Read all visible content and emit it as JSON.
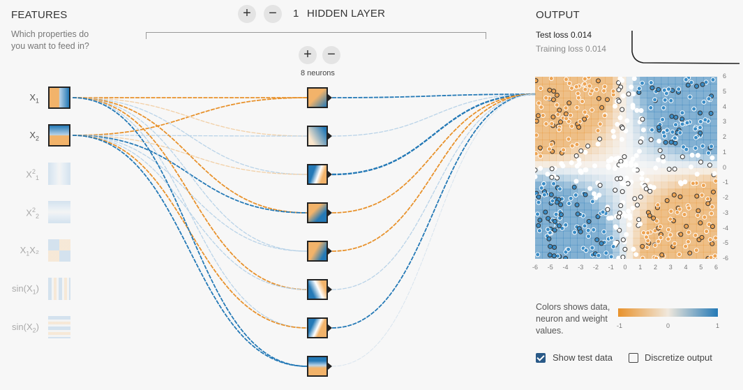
{
  "features": {
    "title": "FEATURES",
    "question": "Which properties do you want to feed in?",
    "items": [
      {
        "base": "X",
        "sub": "1",
        "sup": "",
        "tail": "",
        "active": true,
        "pattern": "x1"
      },
      {
        "base": "X",
        "sub": "2",
        "sup": "",
        "tail": "",
        "active": true,
        "pattern": "x2"
      },
      {
        "base": "X",
        "sub": "1",
        "sup": "2",
        "tail": "",
        "active": false,
        "pattern": "x1sq"
      },
      {
        "base": "X",
        "sub": "2",
        "sup": "2",
        "tail": "",
        "active": false,
        "pattern": "x2sq"
      },
      {
        "base": "X",
        "sub": "1",
        "sup": "",
        "tail": "X₂",
        "active": false,
        "pattern": "x1x2"
      },
      {
        "base": "sin(X",
        "sub": "1",
        "sup": "",
        "tail": ")",
        "active": false,
        "pattern": "sin1"
      },
      {
        "base": "sin(X",
        "sub": "2",
        "sup": "",
        "tail": ")",
        "active": false,
        "pattern": "sin2"
      }
    ]
  },
  "network": {
    "layer_count": "1",
    "layer_label": "HIDDEN LAYER",
    "add_layer": "+",
    "remove_layer": "−",
    "add_neuron": "+",
    "remove_neuron": "−",
    "neurons_label": "8 neurons"
  },
  "output": {
    "title": "OUTPUT",
    "test_loss_label": "Test loss",
    "test_loss_value": "0.014",
    "training_loss_label": "Training loss",
    "training_loss_value": "0.014",
    "axis_ticks": [
      "-6",
      "-5",
      "-4",
      "-3",
      "-2",
      "-1",
      "0",
      "1",
      "2",
      "3",
      "4",
      "5",
      "6"
    ],
    "legend_text": "Colors shows data, neuron and weight values.",
    "legend_min": "-1",
    "legend_mid": "0",
    "legend_max": "1",
    "show_test_label": "Show test data",
    "show_test_checked": true,
    "discretize_label": "Discretize output",
    "discretize_checked": false
  },
  "colors": {
    "orange": "#e8922c",
    "blue": "#2479b6",
    "pale": "#e8eaea"
  }
}
